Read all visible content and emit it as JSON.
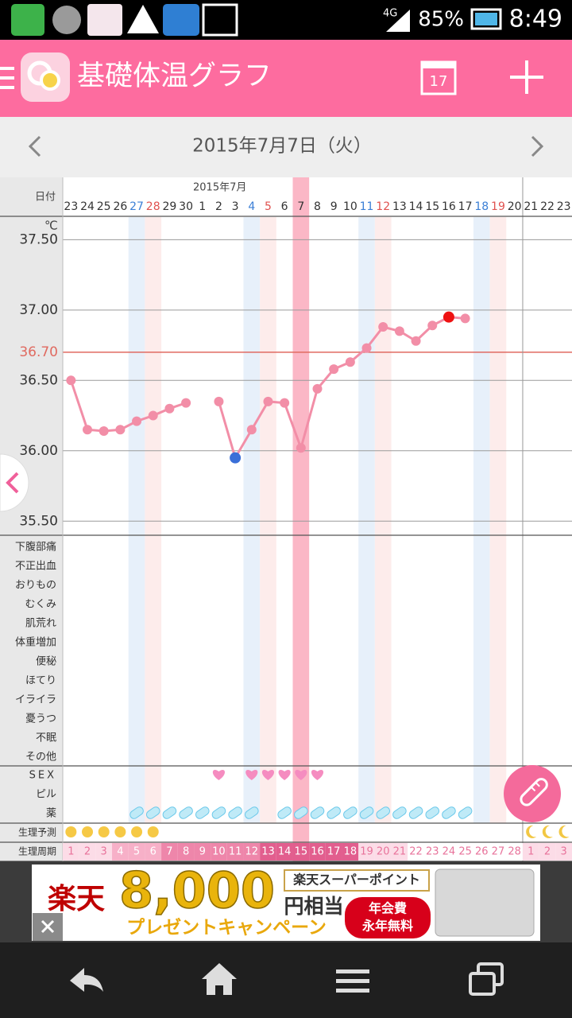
{
  "status_bar": {
    "network": "4G",
    "battery": "85%",
    "time": "8:49"
  },
  "app_bar": {
    "title": "基礎体温グラフ",
    "calendar_day": "17"
  },
  "date_nav": {
    "date": "2015年7月7日（火）"
  },
  "graph": {
    "date_label": "日付",
    "month_label": "2015年7月",
    "unit": "℃",
    "days": [
      "23",
      "24",
      "25",
      "26",
      "27",
      "28",
      "29",
      "30",
      "1",
      "2",
      "3",
      "4",
      "5",
      "6",
      "7",
      "8",
      "9",
      "10",
      "11",
      "12",
      "13",
      "14",
      "15",
      "16",
      "17",
      "18",
      "19",
      "20",
      "21",
      "22",
      "23"
    ],
    "saturday_indices": [
      4,
      11,
      18,
      25
    ],
    "sunday_indices": [
      5,
      12,
      19,
      26
    ],
    "saturday_color": "#3b7fd6",
    "sunday_color": "#e0524f",
    "saturday_stripe": "#e7f0fa",
    "sunday_stripe": "#fdeceb",
    "selected_index": 14,
    "selected_stripe": "#fbb7c6",
    "divider_index": 28,
    "temperatures": [
      36.5,
      36.15,
      36.14,
      36.15,
      36.21,
      36.25,
      36.3,
      36.34,
      null,
      36.35,
      35.95,
      36.15,
      36.35,
      36.34,
      36.02,
      36.44,
      36.58,
      36.63,
      36.73,
      36.88,
      36.85,
      36.78,
      36.89,
      36.95,
      36.94,
      null,
      null,
      null,
      null,
      null,
      null
    ],
    "ylim": [
      35.4,
      37.66
    ],
    "yticks": [
      {
        "value": 35.5,
        "label": "35.50"
      },
      {
        "value": 36,
        "label": "36.00"
      },
      {
        "value": 36.5,
        "label": "36.50"
      },
      {
        "value": 37,
        "label": "37.00"
      },
      {
        "value": 37.5,
        "label": "37.50"
      }
    ],
    "reference": {
      "value": 36.7,
      "label": "36.70",
      "color": "#e06a60"
    },
    "line_color": "#f28ea7",
    "low_index": 10,
    "low_color": "#3a6fd8",
    "high_index": 23,
    "high_color": "#ee1111"
  },
  "rows": {
    "symptoms": [
      "下腹部痛",
      "不正出血",
      "おりもの",
      "むくみ",
      "肌荒れ",
      "体重増加",
      "便秘",
      "ほてり",
      "イライラ",
      "憂うつ",
      "不眠",
      "その他"
    ],
    "sex": {
      "label": "SEX",
      "days": [
        9,
        11,
        12,
        13,
        14,
        15
      ]
    },
    "pill": {
      "label": "ピル"
    },
    "medicine": {
      "label": "薬",
      "days": [
        4,
        5,
        6,
        7,
        8,
        9,
        10,
        11,
        13,
        14,
        15,
        16,
        17,
        18,
        19,
        20,
        21,
        22,
        23,
        24
      ]
    },
    "period_forecast": {
      "label": "生理予測",
      "period_days": [
        0,
        1,
        2,
        3,
        4,
        5
      ],
      "moon_days": [
        28,
        29,
        30
      ]
    },
    "cycle": {
      "label": "生理周期",
      "days": [
        "1",
        "2",
        "3",
        "4",
        "5",
        "6",
        "7",
        "8",
        "9",
        "10",
        "11",
        "12",
        "13",
        "14",
        "15",
        "16",
        "17",
        "18",
        "19",
        "20",
        "21",
        "22",
        "23",
        "24",
        "25",
        "26",
        "27",
        "28",
        "1",
        "2",
        "3"
      ],
      "shades": [
        1,
        1,
        1,
        2,
        2,
        2,
        3,
        3,
        3,
        3,
        3,
        3,
        4,
        4,
        4,
        4,
        4,
        4,
        1,
        1,
        1,
        0,
        0,
        0,
        0,
        0,
        0,
        0,
        1,
        1,
        1
      ],
      "shade_colors": [
        "#ffffff",
        "#fcdce7",
        "#f7b0c8",
        "#ee86aa",
        "#e25e8e"
      ]
    }
  },
  "ad": {
    "brand": "楽天",
    "amount": "8,000",
    "unit": "円相当",
    "campaign": "プレゼントキャンペーン",
    "point": "楽天スーパーポイント",
    "fee": "年会費",
    "free": "永年無料"
  }
}
